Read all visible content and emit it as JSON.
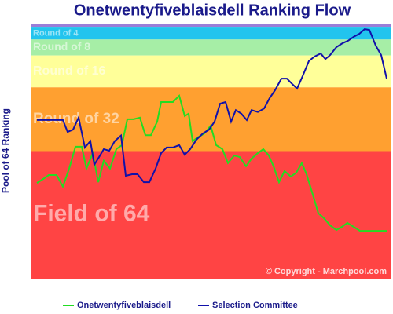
{
  "chart_data": {
    "type": "line",
    "title": "Onetwentyfiveblaisdell Ranking Flow",
    "y_label": "Pool of 64 Ranking",
    "annotation": "© Copyright - Marchpool.com",
    "xlim": [
      -7,
      450
    ],
    "ylim": [
      64,
      0
    ],
    "bands": [
      {
        "from": 0,
        "to": 1,
        "color": "#9a7ed8"
      },
      {
        "name": "Round of 4",
        "from": 1,
        "to": 4,
        "color": "#22c4ee"
      },
      {
        "name": "Round of 8",
        "from": 4,
        "to": 8,
        "color": "#a6eea6"
      },
      {
        "name": "Round of 16",
        "from": 8,
        "to": 16,
        "color": "#ffff99"
      },
      {
        "name": "Round of 32",
        "from": 16,
        "to": 32,
        "color": "#ffa030"
      },
      {
        "name": "Field of 64",
        "from": 32,
        "to": 64,
        "color": "#ff4444"
      }
    ],
    "series": [
      {
        "name": "Onetwentyfiveblaisdell",
        "color": "#22dd22",
        "x": [
          0,
          8,
          15,
          25,
          33,
          41,
          49,
          57,
          63,
          71,
          78,
          85,
          93,
          101,
          108,
          115,
          123,
          131,
          138,
          145,
          153,
          158,
          165,
          173,
          181,
          188,
          193,
          198,
          205,
          213,
          221,
          228,
          236,
          243,
          251,
          258,
          266,
          273,
          281,
          288,
          295,
          301,
          308,
          315,
          323,
          330,
          337,
          343,
          351,
          358,
          365,
          373,
          381,
          388,
          395,
          403,
          411,
          419,
          428,
          445
        ],
        "values": [
          40.0,
          39.0,
          38.0,
          38.0,
          40.9,
          36.4,
          30.9,
          30.9,
          36.4,
          32.5,
          39.8,
          34.4,
          36.4,
          31.5,
          30.5,
          24.0,
          24.0,
          23.6,
          28.0,
          28.0,
          24.6,
          19.7,
          19.7,
          19.7,
          18.1,
          23.2,
          22.6,
          29.5,
          28.5,
          27.6,
          25.6,
          30.5,
          31.5,
          35.0,
          33.1,
          33.5,
          35.8,
          33.9,
          32.5,
          31.5,
          33.1,
          35.8,
          39.8,
          37.0,
          38.4,
          37.4,
          35.0,
          37.8,
          42.9,
          47.6,
          48.8,
          50.6,
          51.8,
          51.0,
          50.0,
          51.0,
          52.0,
          52.0,
          52.0,
          52.0
        ]
      },
      {
        "name": "Selection Committee",
        "color": "#1111aa",
        "x": [
          0,
          25,
          33,
          39,
          46,
          53,
          61,
          68,
          73,
          79,
          85,
          92,
          99,
          107,
          113,
          121,
          128,
          136,
          143,
          151,
          158,
          165,
          173,
          181,
          188,
          195,
          203,
          211,
          219,
          226,
          233,
          240,
          247,
          253,
          260,
          267,
          273,
          281,
          289,
          296,
          303,
          311,
          318,
          325,
          331,
          338,
          346,
          353,
          361,
          367,
          373,
          381,
          389,
          396,
          403,
          410,
          417,
          423,
          431,
          438,
          445
        ],
        "values": [
          24.2,
          24.2,
          24.2,
          27.2,
          26.6,
          23.6,
          31.1,
          29.5,
          35.4,
          33.5,
          31.5,
          31.9,
          29.5,
          28.1,
          38.2,
          37.8,
          37.8,
          39.8,
          39.8,
          36.4,
          32.5,
          31.1,
          31.1,
          30.5,
          32.9,
          31.5,
          29.1,
          27.6,
          26.6,
          24.6,
          20.1,
          19.7,
          24.6,
          21.7,
          22.6,
          24.2,
          21.7,
          22.2,
          21.3,
          18.7,
          16.7,
          13.8,
          13.8,
          15.2,
          16.3,
          13.2,
          9.4,
          8.3,
          7.5,
          8.9,
          7.9,
          5.9,
          4.9,
          4.3,
          3.3,
          2.6,
          1.4,
          1.6,
          5.5,
          7.9,
          13.8
        ]
      }
    ]
  }
}
